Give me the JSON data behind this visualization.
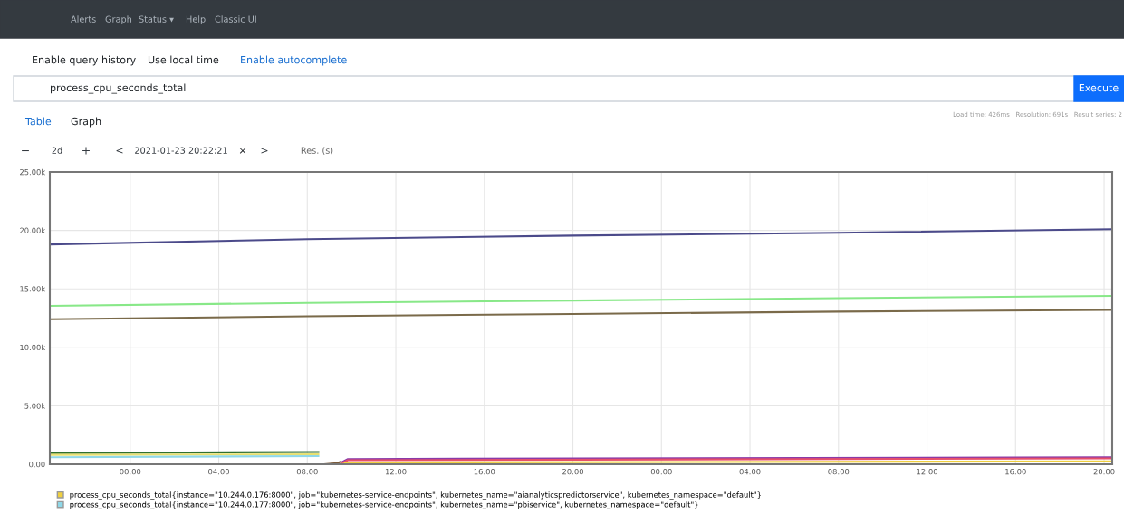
{
  "chart_data": {
    "type": "line",
    "annotations": [
      "Alerts",
      "Graph",
      "Status ▾",
      "Help",
      "Classic UI",
      "Enable query history",
      "Use local time",
      "Enable autocomplete",
      "process_cpu_seconds_total",
      "Execute",
      "Table",
      "Graph",
      "Load time: 426ms   Resolution: 691s   Result series: 2",
      "−",
      "2d",
      "+",
      "<",
      "2021-01-23 20:22:21",
      "×",
      ">",
      "Res. (s)"
    ],
    "series": [
      {
        "color": "#4b4a8a",
        "x": [
          "2021-01-21T20:22",
          "2021-01-22T08:00",
          "2021-01-22T20:00",
          "2021-01-23T08:00",
          "2021-01-23T20:22"
        ],
        "values": [
          18800,
          19250,
          19550,
          19800,
          20100
        ]
      },
      {
        "color": "#88e888",
        "x": [
          "2021-01-21T20:22",
          "2021-01-22T08:00",
          "2021-01-22T20:00",
          "2021-01-23T08:00",
          "2021-01-23T20:22"
        ],
        "values": [
          13550,
          13800,
          14000,
          14200,
          14400
        ]
      },
      {
        "color": "#7a6a4a",
        "x": [
          "2021-01-21T20:22",
          "2021-01-22T08:00",
          "2021-01-22T20:00",
          "2021-01-23T08:00",
          "2021-01-23T20:22"
        ],
        "values": [
          12400,
          12650,
          12850,
          13050,
          13200
        ]
      },
      {
        "color": "#2f6f2f",
        "x": [
          "2021-01-21T20:22",
          "2021-01-22T08:30"
        ],
        "values": [
          950,
          1050
        ]
      },
      {
        "color": "#e8e070",
        "x": [
          "2021-01-21T20:22",
          "2021-01-22T08:30"
        ],
        "values": [
          800,
          850
        ]
      },
      {
        "name": "process_cpu_seconds_total{instance=\"10.244.0.177:8000\", job=\"kubernetes-service-endpoints\", kubernetes_name=\"pbiservice\", kubernetes_namespace=\"default\"}",
        "color": "#8fd8e8",
        "x": [
          "2021-01-21T20:22",
          "2021-01-22T08:30"
        ],
        "values": [
          600,
          700
        ]
      },
      {
        "color": "#7a5a3a",
        "x": [
          "2021-01-22T08:45",
          "2021-01-22T09:20",
          "2021-01-22T09:30"
        ],
        "values": [
          0,
          100,
          200
        ]
      },
      {
        "color": "#8a3aa8",
        "x": [
          "2021-01-22T09:35",
          "2021-01-22T09:50",
          "2021-01-23T20:22"
        ],
        "values": [
          200,
          450,
          600
        ]
      },
      {
        "color": "#e8506a",
        "x": [
          "2021-01-22T09:35",
          "2021-01-22T09:50",
          "2021-01-23T20:22"
        ],
        "values": [
          100,
          350,
          500
        ]
      },
      {
        "name": "process_cpu_seconds_total{instance=\"10.244.0.176:8000\", job=\"kubernetes-service-endpoints\", kubernetes_name=\"aianalyticspredictorservice\", kubernetes_namespace=\"default\"}",
        "color": "#f0d040",
        "x": [
          "2021-01-22T09:35",
          "2021-01-22T09:50",
          "2021-01-23T20:22"
        ],
        "values": [
          0,
          150,
          250
        ]
      }
    ],
    "xlim": [
      "2021-01-21T20:22",
      "2021-01-23T20:22"
    ],
    "xticks": [
      {
        "value": "2021-01-22T00:00",
        "label": "00:00"
      },
      {
        "value": "2021-01-22T04:00",
        "label": "04:00"
      },
      {
        "value": "2021-01-22T08:00",
        "label": "08:00"
      },
      {
        "value": "2021-01-22T12:00",
        "label": "12:00"
      },
      {
        "value": "2021-01-22T16:00",
        "label": "16:00"
      },
      {
        "value": "2021-01-22T20:00",
        "label": "20:00"
      },
      {
        "value": "2021-01-23T00:00",
        "label": "00:00"
      },
      {
        "value": "2021-01-23T04:00",
        "label": "04:00"
      },
      {
        "value": "2021-01-23T08:00",
        "label": "08:00"
      },
      {
        "value": "2021-01-23T12:00",
        "label": "12:00"
      },
      {
        "value": "2021-01-23T16:00",
        "label": "16:00"
      },
      {
        "value": "2021-01-23T20:00",
        "label": "20:00"
      }
    ],
    "ylim": [
      0,
      25000
    ],
    "yticks": [
      {
        "value": 0,
        "label": "0.00"
      },
      {
        "value": 5000,
        "label": "5.00k"
      },
      {
        "value": 10000,
        "label": "10.00k"
      },
      {
        "value": 15000,
        "label": "15.00k"
      },
      {
        "value": 20000,
        "label": "20.00k"
      },
      {
        "value": 25000,
        "label": "25.00k"
      }
    ],
    "grid": true,
    "legend": "bottom",
    "marker": "none",
    "line_style": "solid"
  }
}
